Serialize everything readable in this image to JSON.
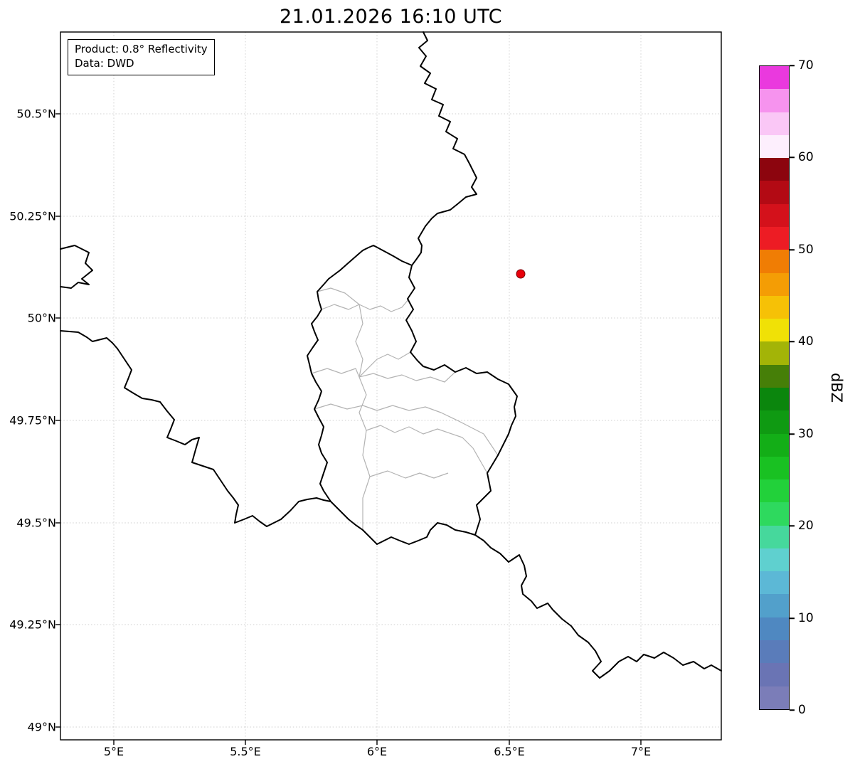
{
  "title": "21.01.2026 16:10 UTC",
  "info_box": {
    "line1": "Product: 0.8° Reflectivity",
    "line2": "Data: DWD"
  },
  "map": {
    "lat_ticks": [
      "50.5°N",
      "50.25°N",
      "50°N",
      "49.75°N",
      "49.5°N",
      "49.25°N",
      "49°N"
    ],
    "lon_ticks": [
      "5°E",
      "5.5°E",
      "6°E",
      "6.5°E",
      "7°E"
    ],
    "border_color": "#000000",
    "district_border_color": "#b3b3b3",
    "grid_color": "#cfcfcf",
    "radar_marker_color": "#e8000b"
  },
  "colorbar": {
    "label": "dBZ",
    "min": 0,
    "max": 70,
    "tick_values": [
      0,
      10,
      20,
      30,
      40,
      50,
      60,
      70
    ],
    "colors": [
      "#7b7db8",
      "#6a74b4",
      "#5a7cba",
      "#4f88c1",
      "#52a0cb",
      "#5cb8d6",
      "#5fd0cf",
      "#46d89c",
      "#2ed95e",
      "#22d13a",
      "#19c122",
      "#13ae17",
      "#0f9a12",
      "#0b860d",
      "#467f08",
      "#a3b407",
      "#f0e106",
      "#f6c106",
      "#f49d05",
      "#f07d04",
      "#ed1c24",
      "#d4111b",
      "#b30a14",
      "#8c050e",
      "#fdeffd",
      "#fac7f6",
      "#f693ee",
      "#ea39de"
    ]
  }
}
